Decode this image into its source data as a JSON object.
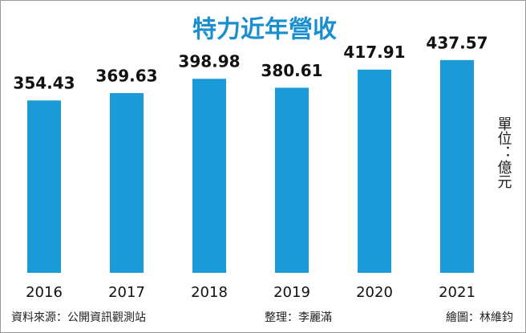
{
  "chart_data": {
    "type": "bar",
    "title": "特力近年營收",
    "categories": [
      "2016",
      "2017",
      "2018",
      "2019",
      "2020",
      "2021"
    ],
    "values": [
      354.43,
      369.63,
      398.98,
      380.61,
      417.91,
      437.57
    ],
    "color": "#1a9bd7",
    "unit": "單位：億元",
    "source": "資料來源：公開資訊觀測站",
    "editor": "整理：李麗滿",
    "illustrator": "繪圖：林維鈞"
  }
}
